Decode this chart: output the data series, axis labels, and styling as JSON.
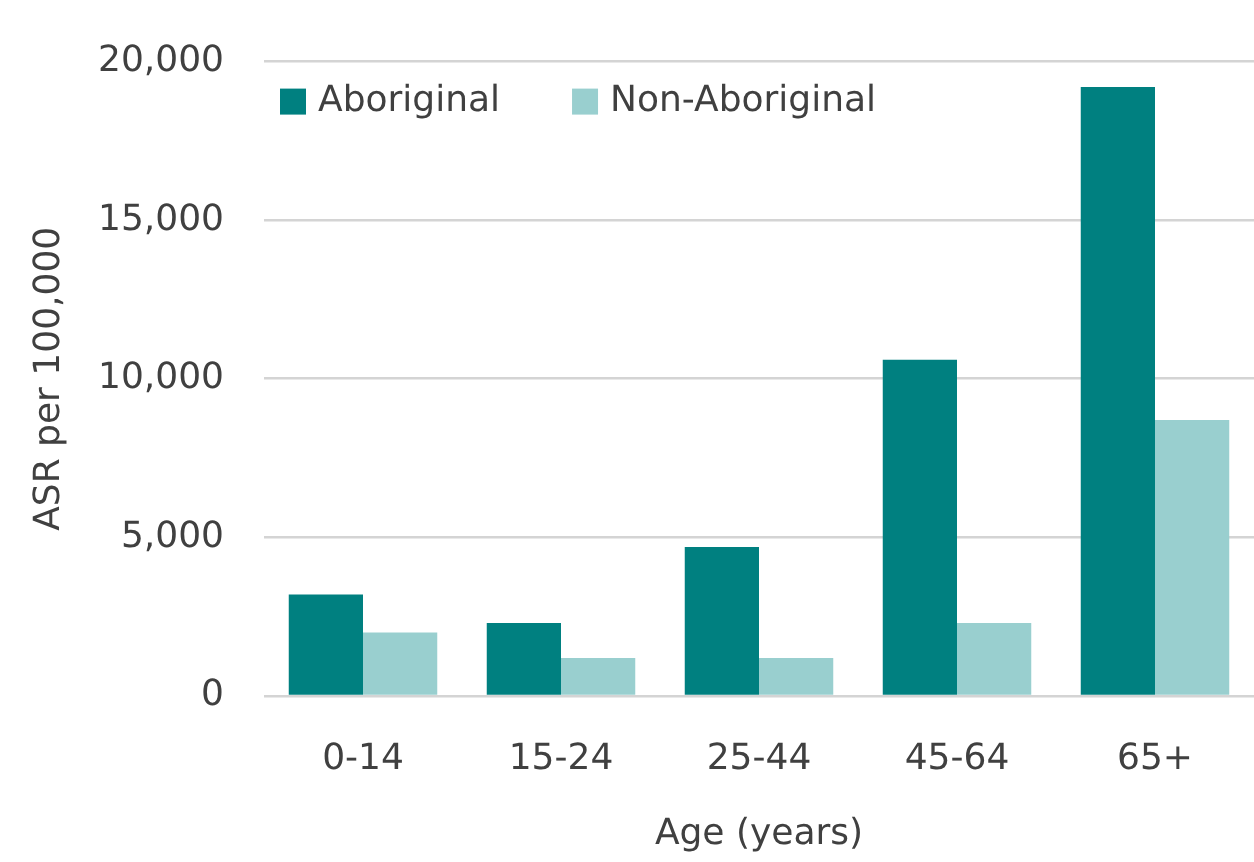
{
  "chart_data": {
    "type": "bar",
    "xlabel": "Age (years)",
    "ylabel": "ASR per 100,000",
    "categories": [
      "0-14",
      "15-24",
      "25-44",
      "45-64",
      "65+"
    ],
    "series": [
      {
        "name": "Aboriginal",
        "color": "#008080",
        "values": [
          3200,
          2300,
          4700,
          10600,
          19200
        ]
      },
      {
        "name": "Non-Aboriginal",
        "color": "#99cfcf",
        "values": [
          2000,
          1200,
          1200,
          2300,
          8700
        ]
      }
    ],
    "ylim": [
      0,
      20000
    ],
    "yticks": [
      0,
      {
        "value": 5000,
        "label": "5,000"
      },
      {
        "value": 10000,
        "label": "10,000"
      },
      {
        "value": 15000,
        "label": "15,000"
      },
      {
        "value": 20000,
        "label": "20,000"
      }
    ],
    "grid": "y",
    "legend": "top left"
  }
}
